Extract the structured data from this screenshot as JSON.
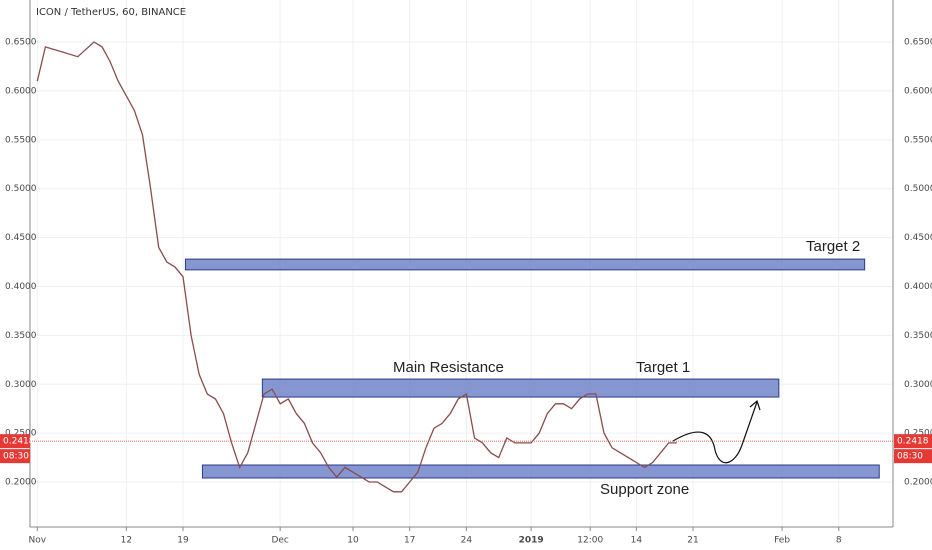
{
  "chart_data": {
    "type": "line",
    "title": "ICON / TetherUS, 60, BINANCE",
    "x": [
      0,
      1,
      3,
      5,
      7,
      8,
      9,
      10,
      11,
      12,
      13,
      14,
      15,
      16,
      17,
      18,
      19,
      20,
      21,
      22,
      23,
      24,
      25,
      26,
      27,
      28,
      29,
      30,
      31,
      32,
      33,
      34,
      35,
      36,
      37,
      38,
      39,
      40,
      41,
      42,
      43,
      44,
      45,
      46,
      47,
      48,
      49,
      50,
      51,
      52,
      53,
      54,
      55,
      56,
      57,
      58,
      59,
      60,
      61,
      62,
      63,
      64,
      65,
      66,
      67,
      68,
      69,
      70,
      71,
      72,
      73,
      74,
      75,
      76,
      77,
      78,
      79
    ],
    "series": [
      {
        "color": "#8a4c4c",
        "values": [
          0.61,
          0.645,
          0.64,
          0.635,
          0.65,
          0.645,
          0.63,
          0.61,
          0.595,
          0.58,
          0.555,
          0.5,
          0.44,
          0.425,
          0.42,
          0.41,
          0.35,
          0.31,
          0.29,
          0.285,
          0.27,
          0.24,
          0.215,
          0.23,
          0.26,
          0.29,
          0.295,
          0.28,
          0.285,
          0.27,
          0.26,
          0.24,
          0.23,
          0.215,
          0.205,
          0.215,
          0.21,
          0.205,
          0.2,
          0.2,
          0.195,
          0.19,
          0.19,
          0.2,
          0.21,
          0.235,
          0.255,
          0.26,
          0.27,
          0.285,
          0.29,
          0.245,
          0.24,
          0.23,
          0.225,
          0.245,
          0.24,
          0.24,
          0.24,
          0.25,
          0.27,
          0.28,
          0.28,
          0.275,
          0.285,
          0.29,
          0.29,
          0.25,
          0.235,
          0.23,
          0.225,
          0.22,
          0.215,
          0.22,
          0.23,
          0.24,
          0.24
        ]
      }
    ],
    "xlim": [
      -0.9,
      105.7
    ],
    "xticks": [
      {
        "value": 0,
        "label": "Nov"
      },
      {
        "value": 11,
        "label": "12"
      },
      {
        "value": 18,
        "label": "19"
      },
      {
        "value": 30,
        "label": "Dec"
      },
      {
        "value": 39,
        "label": "10"
      },
      {
        "value": 46,
        "label": "17"
      },
      {
        "value": 53,
        "label": "24"
      },
      {
        "value": 61,
        "label": "2019"
      },
      {
        "value": 68.3,
        "label": "12:00"
      },
      {
        "value": 74,
        "label": "14"
      },
      {
        "value": 81,
        "label": "21"
      },
      {
        "value": 92,
        "label": "Feb"
      },
      {
        "value": 99,
        "label": "8"
      }
    ],
    "ylim": [
      0.154,
      0.693
    ],
    "yticks": [
      {
        "value": 0.2,
        "label": "0.2000"
      },
      {
        "value": 0.25,
        "label": "0.2500"
      },
      {
        "value": 0.3,
        "label": "0.3000"
      },
      {
        "value": 0.35,
        "label": "0.3500"
      },
      {
        "value": 0.4,
        "label": "0.4000"
      },
      {
        "value": 0.45,
        "label": "0.4500"
      },
      {
        "value": 0.5,
        "label": "0.5000"
      },
      {
        "value": 0.55,
        "label": "0.5500"
      },
      {
        "value": 0.6,
        "label": "0.6000"
      },
      {
        "value": 0.65,
        "label": "0.6500"
      }
    ],
    "grid": true,
    "last_price": {
      "value": 0.2418,
      "label": "0.2418"
    },
    "countdown": "08:30",
    "zones": [
      {
        "days": [
          18.3,
          102.2
        ],
        "price": [
          0.428,
          0.417
        ]
      },
      {
        "days": [
          27.8,
          91.6
        ],
        "price": [
          0.3053,
          0.2869
        ]
      },
      {
        "days": [
          20.4,
          104
        ],
        "price": [
          0.2174,
          0.2041
        ]
      }
    ],
    "annotations": [
      "Target 2",
      "Main Resistance",
      "Target 1",
      "Support zone"
    ]
  }
}
